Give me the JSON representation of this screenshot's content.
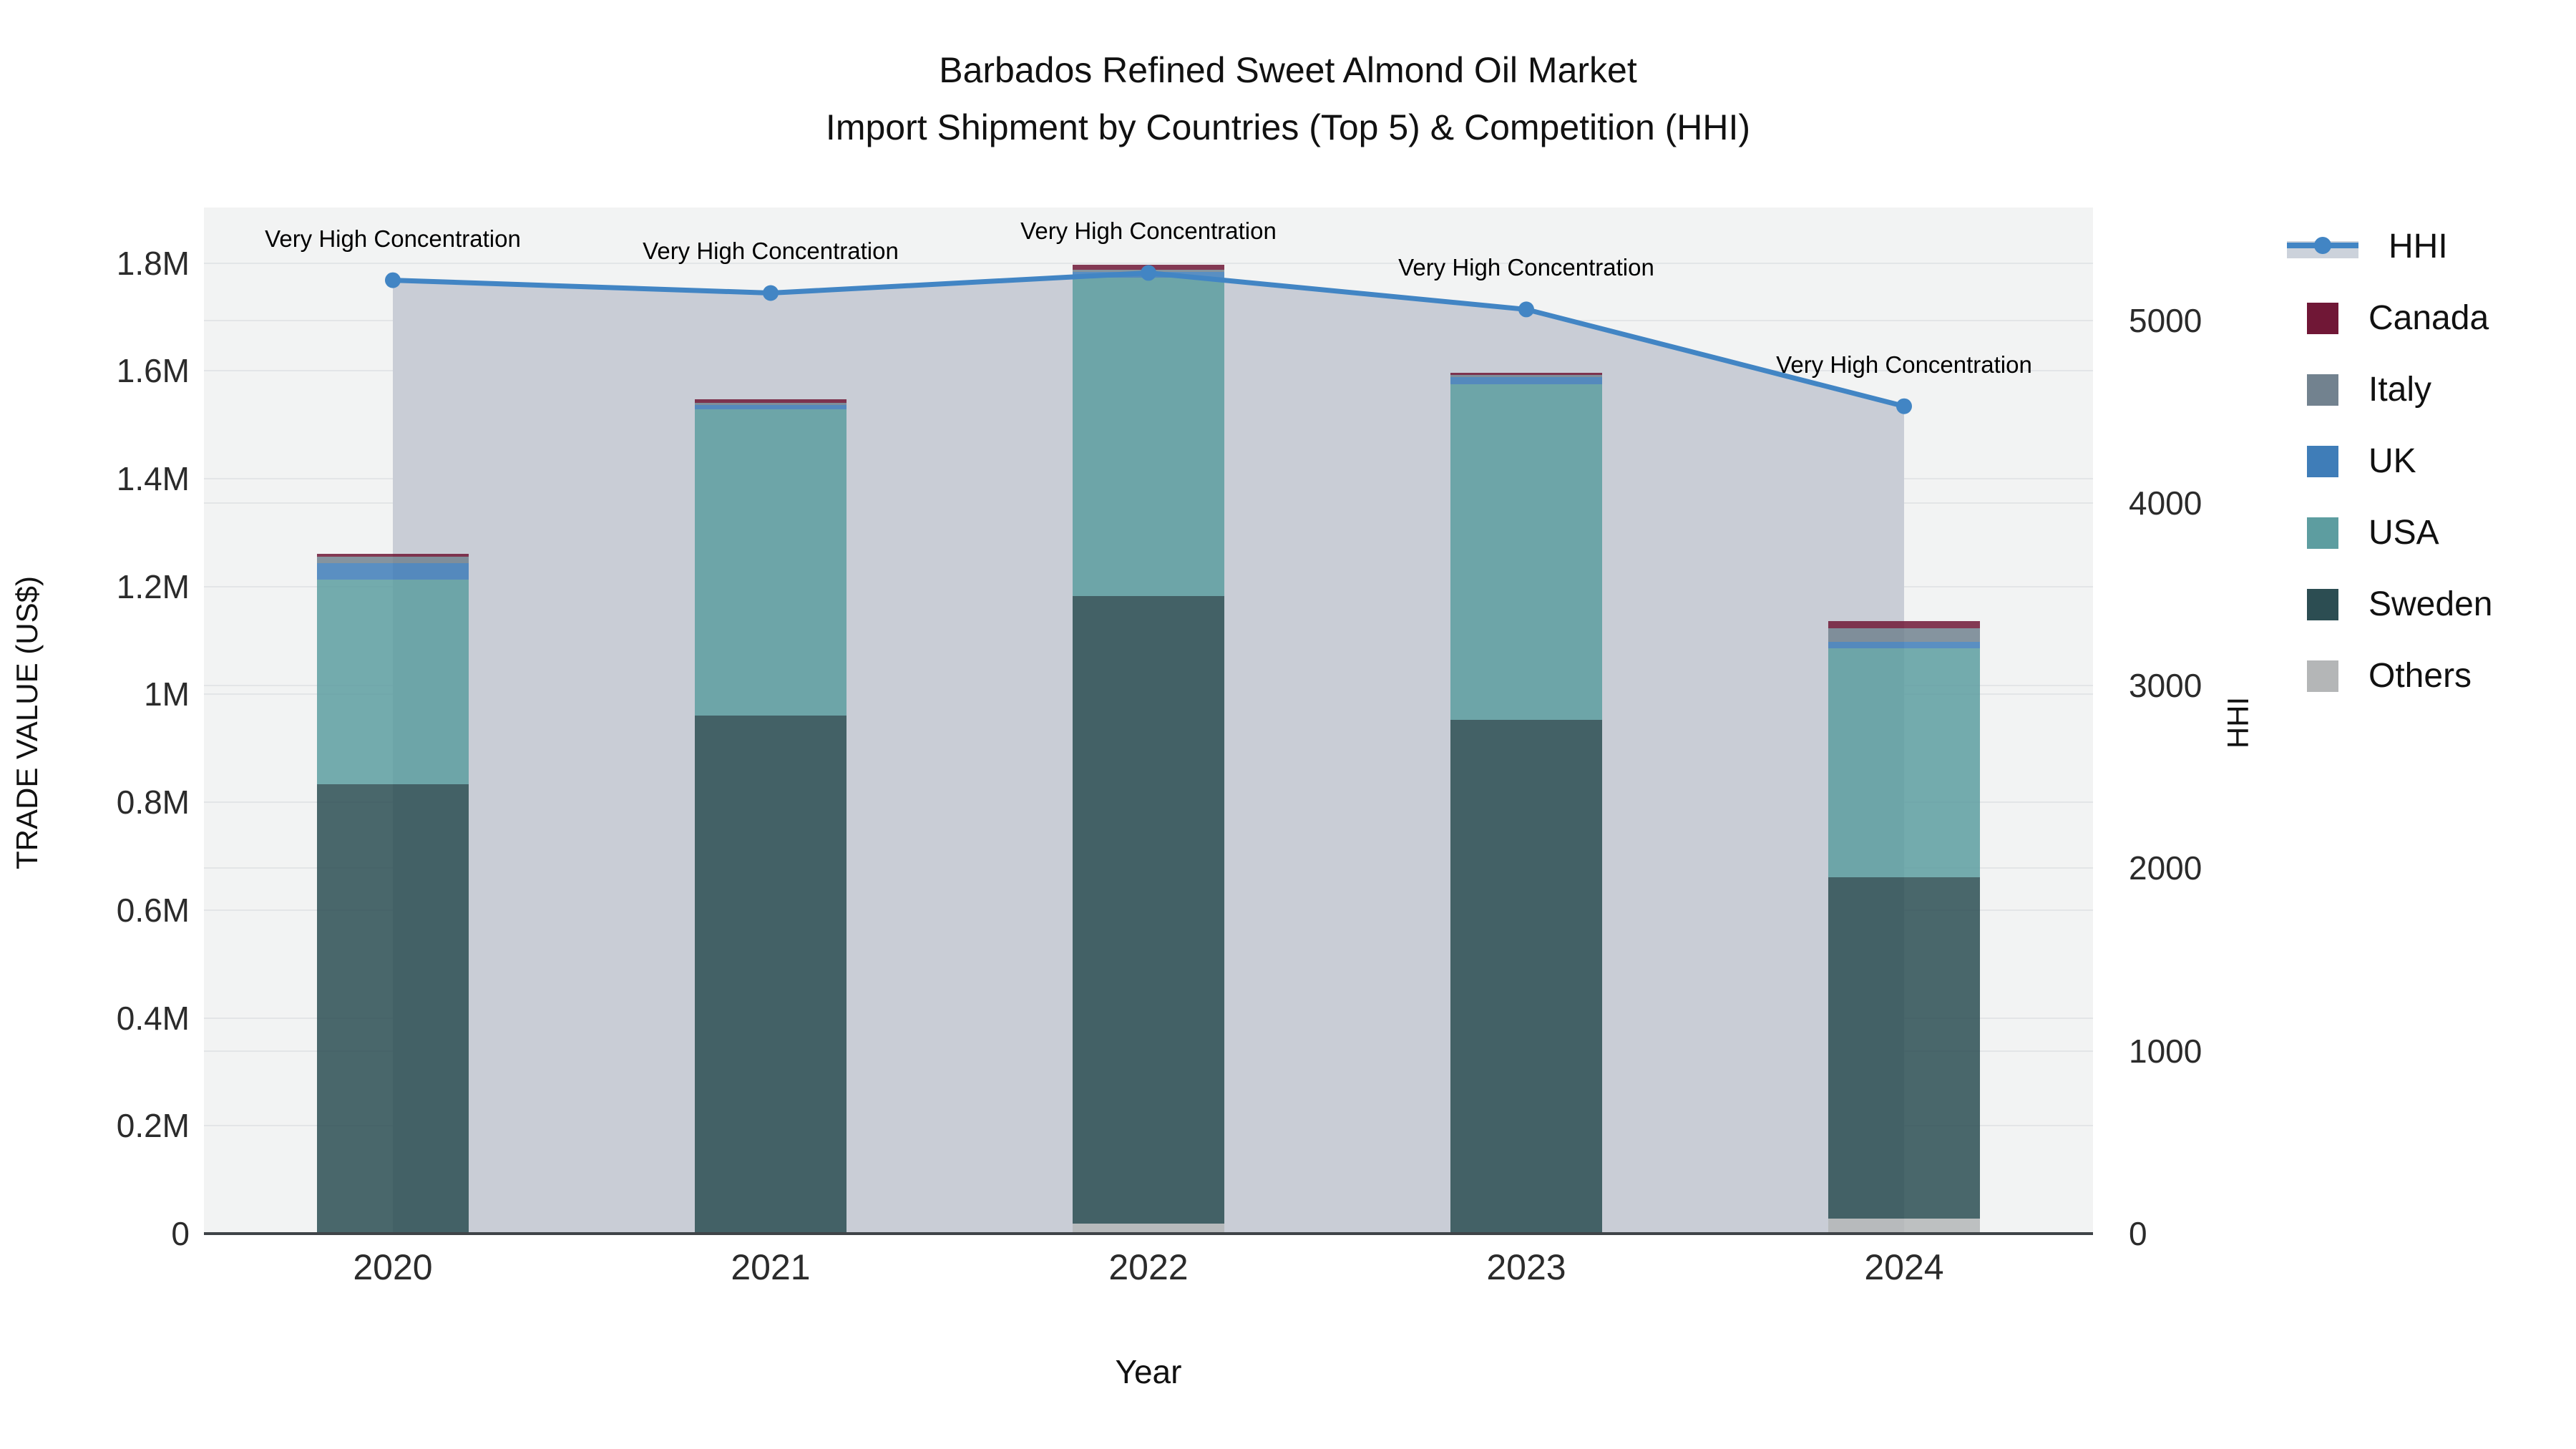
{
  "title": {
    "line1": "Barbados Refined Sweet Almond Oil Market",
    "line2": "Import Shipment by Countries (Top 5) & Competition (HHI)"
  },
  "axes": {
    "left_title": "TRADE VALUE (US$)",
    "right_title": "HHI",
    "x_title": "Year",
    "left_tick_labels": [
      "0",
      "0.2M",
      "0.4M",
      "0.6M",
      "0.8M",
      "1M",
      "1.2M",
      "1.4M",
      "1.6M",
      "1.8M"
    ],
    "right_tick_labels": [
      "0",
      "1000",
      "2000",
      "3000",
      "4000",
      "5000"
    ]
  },
  "legend": {
    "items": [
      {
        "label": "HHI",
        "type": "line",
        "color": "#4285c4"
      },
      {
        "label": "Canada",
        "type": "swatch",
        "color": "#701736"
      },
      {
        "label": "Italy",
        "type": "swatch",
        "color": "#72828f"
      },
      {
        "label": "UK",
        "type": "swatch",
        "color": "#3f7db8"
      },
      {
        "label": "USA",
        "type": "swatch",
        "color": "#5d9da0"
      },
      {
        "label": "Sweden",
        "type": "swatch",
        "color": "#2c4d52"
      },
      {
        "label": "Others",
        "type": "swatch",
        "color": "#b4b6b7"
      }
    ]
  },
  "annotation_text": "Very High Concentration",
  "chart_data": {
    "type": "bar",
    "subtype": "stacked-bar-with-line",
    "title": "Barbados Refined Sweet Almond Oil Market — Import Shipment by Countries (Top 5) & Competition (HHI)",
    "categories": [
      "2020",
      "2021",
      "2022",
      "2023",
      "2024"
    ],
    "xlabel": "Year",
    "ylabel_left": "TRADE VALUE (US$)",
    "ylabel_right": "HHI",
    "ylim_left": [
      0,
      1903000
    ],
    "ylim_right": [
      0,
      5618
    ],
    "left_ticks": [
      0,
      200000,
      400000,
      600000,
      800000,
      1000000,
      1200000,
      1400000,
      1600000,
      1800000
    ],
    "right_ticks": [
      0,
      1000,
      2000,
      3000,
      4000,
      5000
    ],
    "grid": true,
    "legend_position": "right",
    "stack_order_bottom_to_top": [
      "Others",
      "Sweden",
      "USA",
      "UK",
      "Italy",
      "Canada"
    ],
    "series": [
      {
        "name": "Others",
        "color": "#b4b6b7",
        "values": [
          0,
          0,
          19000,
          0,
          28000
        ]
      },
      {
        "name": "Sweden",
        "color": "#2c4d52",
        "values": [
          833000,
          961000,
          1164000,
          953000,
          633000
        ]
      },
      {
        "name": "USA",
        "color": "#5d9da0",
        "values": [
          380000,
          568000,
          590000,
          622000,
          424000
        ]
      },
      {
        "name": "UK",
        "color": "#3f7db8",
        "values": [
          30000,
          8000,
          10000,
          14000,
          13000
        ]
      },
      {
        "name": "Italy",
        "color": "#72828f",
        "values": [
          12000,
          4000,
          5000,
          3000,
          25000
        ]
      },
      {
        "name": "Canada",
        "color": "#701736",
        "values": [
          6000,
          7000,
          9000,
          4000,
          13000
        ]
      }
    ],
    "bar_totals": [
      1261000,
      1548000,
      1797000,
      1596000,
      1136000
    ],
    "line_series": {
      "name": "HHI",
      "axis": "right",
      "color": "#4285c4",
      "area_fill_color": "#c9cdd6",
      "values": [
        5220,
        5150,
        5260,
        5060,
        4530
      ]
    },
    "annotations": [
      {
        "x": "2020",
        "text": "Very High Concentration"
      },
      {
        "x": "2021",
        "text": "Very High Concentration"
      },
      {
        "x": "2022",
        "text": "Very High Concentration"
      },
      {
        "x": "2023",
        "text": "Very High Concentration"
      },
      {
        "x": "2024",
        "text": "Very High Concentration"
      }
    ]
  }
}
